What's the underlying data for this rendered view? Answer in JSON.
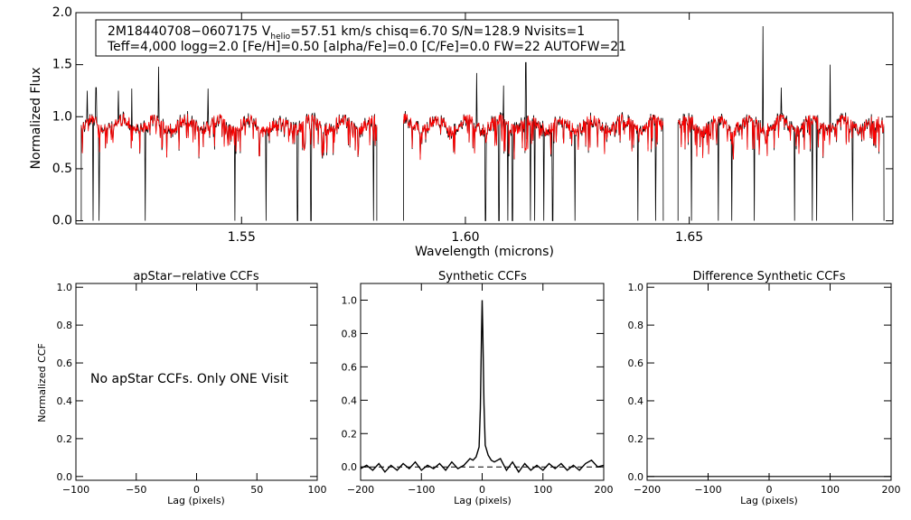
{
  "chart_data": [
    {
      "type": "line",
      "panel": "spectrum",
      "title": "",
      "xlabel": "Wavelength (microns)",
      "ylabel": "Normalized Flux",
      "xlim": [
        1.513,
        1.6955
      ],
      "ylim": [
        -0.03,
        2.0
      ],
      "xticks": [
        1.55,
        1.6,
        1.65
      ],
      "xtick_labels": [
        "1.55",
        "1.60",
        "1.65"
      ],
      "yticks": [
        0.0,
        0.5,
        1.0,
        1.5,
        2.0
      ],
      "ytick_labels": [
        "0.0",
        "0.5",
        "1.0",
        "1.5",
        "2.0"
      ],
      "info_line1": "2M18440708−0607175  V",
      "info_helio_sub": "helio",
      "info_line1_rest": "=57.51 km/s  chisq=6.70  S/N=128.9  Nvisits=1",
      "info_line2": "Teff=4,000 logg=2.0 [Fe/H]=0.50 [alpha/Fe]=0.0 [C/Fe]=0.0 FW=22 AUTOFW=21",
      "segments": [
        [
          1.5142,
          1.5802
        ],
        [
          1.5862,
          1.6442
        ],
        [
          1.6475,
          1.6935
        ]
      ],
      "series": [
        {
          "name": "observed",
          "color": "#000000"
        },
        {
          "name": "synthetic",
          "color": "#ff0000"
        }
      ],
      "spikes": [
        1.5155,
        1.5175,
        1.5225,
        1.5255,
        1.5315,
        1.5425,
        1.6025,
        1.6085,
        1.6135,
        1.6665,
        1.6705,
        1.6815
      ],
      "spike_heights": [
        1.25,
        1.28,
        1.25,
        1.27,
        1.48,
        1.27,
        1.42,
        1.3,
        1.52,
        1.87,
        1.28,
        1.5
      ],
      "dips": [
        1.5168,
        1.5182,
        1.5285,
        1.5485,
        1.5555,
        1.5625,
        1.5655,
        1.5795,
        1.6045,
        1.6075,
        1.6095,
        1.6105,
        1.6135,
        1.6145,
        1.6155,
        1.6175,
        1.6195,
        1.6245,
        1.6385,
        1.6425,
        1.6445,
        1.6505,
        1.6565,
        1.6595,
        1.6645,
        1.6735,
        1.6775,
        1.6785,
        1.6865
      ],
      "dip_values": [
        0.0,
        0.0,
        0.0,
        0.0,
        0.0,
        0.0,
        0.0,
        0.0,
        0.0,
        0.0,
        0.0,
        0.0,
        0.0,
        0.0,
        0.0,
        0.0,
        0.0,
        0.0,
        0.0,
        0.0,
        0.0,
        0.0,
        0.0,
        0.0,
        0.0,
        0.0,
        0.0,
        0.0,
        0.0
      ]
    },
    {
      "type": "line",
      "panel": "apstar",
      "title": "apStar−relative CCFs",
      "xlabel": "Lag (pixels)",
      "ylabel": "Normalized CCF",
      "xlim": [
        -100,
        100
      ],
      "ylim": [
        -0.02,
        1.02
      ],
      "xticks": [
        -100,
        -50,
        0,
        50,
        100
      ],
      "xtick_labels": [
        "−100",
        "−50",
        "0",
        "50",
        "100"
      ],
      "yticks": [
        0.0,
        0.2,
        0.4,
        0.6,
        0.8,
        1.0
      ],
      "ytick_labels": [
        "0.0",
        "0.2",
        "0.4",
        "0.6",
        "0.8",
        "1.0"
      ],
      "note": "No apStar CCFs.  Only ONE Visit"
    },
    {
      "type": "line",
      "panel": "synthetic",
      "title": "Synthetic CCFs",
      "xlabel": "Lag (pixels)",
      "ylabel": "",
      "xlim": [
        -200,
        200
      ],
      "ylim": [
        -0.08,
        1.1
      ],
      "xticks": [
        -200,
        -100,
        0,
        100,
        200
      ],
      "xtick_labels": [
        "−200",
        "−100",
        "0",
        "100",
        "200"
      ],
      "yticks": [
        0.0,
        0.2,
        0.4,
        0.6,
        0.8,
        1.0
      ],
      "ytick_labels": [
        "0.0",
        "0.2",
        "0.4",
        "0.6",
        "0.8",
        "1.0"
      ],
      "peak_lag": 0,
      "peak_value": 1.0,
      "baseline": 0.0,
      "noise_points": [
        [
          -200,
          -0.01
        ],
        [
          -190,
          0.01
        ],
        [
          -180,
          -0.02
        ],
        [
          -170,
          0.02
        ],
        [
          -160,
          -0.03
        ],
        [
          -150,
          0.01
        ],
        [
          -140,
          -0.02
        ],
        [
          -130,
          0.02
        ],
        [
          -120,
          -0.01
        ],
        [
          -110,
          0.03
        ],
        [
          -100,
          -0.02
        ],
        [
          -90,
          0.01
        ],
        [
          -80,
          -0.01
        ],
        [
          -70,
          0.02
        ],
        [
          -60,
          -0.02
        ],
        [
          -50,
          0.03
        ],
        [
          -40,
          -0.01
        ],
        [
          -30,
          0.01
        ],
        [
          -20,
          0.05
        ],
        [
          -15,
          0.04
        ],
        [
          -10,
          0.06
        ],
        [
          -5,
          0.12
        ],
        [
          -3,
          0.35
        ],
        [
          -1,
          0.8
        ],
        [
          0,
          1.0
        ],
        [
          1,
          0.82
        ],
        [
          3,
          0.38
        ],
        [
          5,
          0.13
        ],
        [
          10,
          0.07
        ],
        [
          15,
          0.04
        ],
        [
          20,
          0.03
        ],
        [
          30,
          0.05
        ],
        [
          40,
          -0.02
        ],
        [
          50,
          0.03
        ],
        [
          60,
          -0.03
        ],
        [
          70,
          0.02
        ],
        [
          80,
          -0.02
        ],
        [
          90,
          0.01
        ],
        [
          100,
          -0.02
        ],
        [
          110,
          0.02
        ],
        [
          120,
          -0.01
        ],
        [
          130,
          0.02
        ],
        [
          140,
          -0.02
        ],
        [
          150,
          0.01
        ],
        [
          160,
          -0.02
        ],
        [
          170,
          0.02
        ],
        [
          180,
          0.04
        ],
        [
          190,
          0.0
        ],
        [
          200,
          0.01
        ]
      ]
    },
    {
      "type": "line",
      "panel": "difference",
      "title": "Difference Synthetic CCFs",
      "xlabel": "Lag (pixels)",
      "ylabel": "",
      "xlim": [
        -200,
        200
      ],
      "ylim": [
        -0.02,
        1.02
      ],
      "xticks": [
        -200,
        -100,
        0,
        100,
        200
      ],
      "xtick_labels": [
        "−200",
        "−100",
        "0",
        "100",
        "200"
      ],
      "yticks": [
        0.0,
        0.2,
        0.4,
        0.6,
        0.8,
        1.0
      ],
      "ytick_labels": [
        "0.0",
        "0.2",
        "0.4",
        "0.6",
        "0.8",
        "1.0"
      ],
      "values": [
        [
          -200,
          0.0
        ],
        [
          200,
          0.0
        ]
      ]
    }
  ]
}
